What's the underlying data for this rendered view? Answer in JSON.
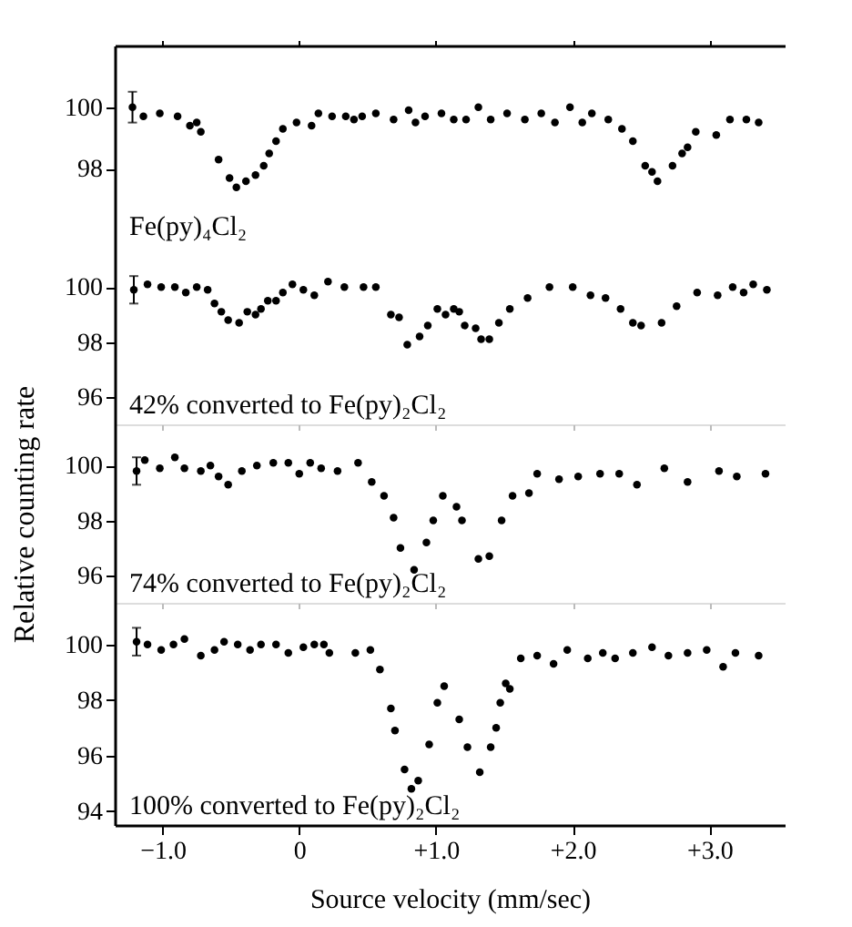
{
  "chart_data": [
    {
      "type": "scatter",
      "color": "#000000",
      "marker": "circle",
      "tick_labels": "y",
      "annotations": [
        "Fe(py)₄Cl₂"
      ],
      "xlim": [
        -1.35,
        3.55
      ],
      "xticks": [
        {
          "value": -1,
          "label": null
        },
        {
          "value": 0,
          "label": null
        },
        {
          "value": 1,
          "label": null
        },
        {
          "value": 2,
          "label": null
        },
        {
          "value": 3,
          "label": null
        }
      ],
      "ylim": [
        95.5,
        102
      ],
      "yticks": [
        100,
        98
      ],
      "x": [
        -1.22,
        -1.14,
        -1.02,
        -0.89,
        -0.8,
        -0.75,
        -0.72,
        -0.59,
        -0.51,
        -0.46,
        -0.39,
        -0.32,
        -0.26,
        -0.22,
        -0.17,
        -0.12,
        -0.02,
        0.09,
        0.14,
        0.24,
        0.34,
        0.4,
        0.46,
        0.56,
        0.69,
        0.8,
        0.85,
        0.92,
        1.04,
        1.13,
        1.22,
        1.31,
        1.4,
        1.52,
        1.65,
        1.77,
        1.87,
        1.98,
        2.07,
        2.14,
        2.26,
        2.36,
        2.44,
        2.53,
        2.58,
        2.62,
        2.73,
        2.8,
        2.84,
        2.9,
        3.05,
        3.15,
        3.27,
        3.36
      ],
      "values": [
        100.0,
        99.7,
        99.8,
        99.7,
        99.4,
        99.5,
        99.2,
        98.3,
        97.7,
        97.4,
        97.6,
        97.8,
        98.1,
        98.5,
        98.9,
        99.3,
        99.5,
        99.4,
        99.8,
        99.7,
        99.7,
        99.6,
        99.7,
        99.8,
        99.6,
        99.9,
        99.5,
        99.7,
        99.8,
        99.6,
        99.6,
        100.0,
        99.6,
        99.8,
        99.6,
        99.8,
        99.5,
        100.0,
        99.5,
        99.8,
        99.6,
        99.3,
        98.9,
        98.1,
        97.9,
        97.6,
        98.1,
        98.5,
        98.7,
        99.2,
        99.1,
        99.6,
        99.6,
        99.5
      ],
      "errors": [
        0.5,
        null,
        null,
        null,
        null,
        null,
        null,
        null,
        null,
        null,
        null,
        null,
        null,
        null,
        null,
        null,
        null,
        null,
        null,
        null,
        null,
        null,
        null,
        null,
        null,
        null,
        null,
        null,
        null,
        null,
        null,
        null,
        null,
        null,
        null,
        null,
        null,
        null,
        null,
        null,
        null,
        null,
        null,
        null,
        null,
        null,
        null,
        null,
        null,
        null,
        null,
        null,
        null,
        null
      ]
    },
    {
      "type": "scatter",
      "color": "#000000",
      "marker": "circle",
      "tick_labels": "y",
      "annotations": [
        "42% converted to Fe(py)₂Cl₂"
      ],
      "xlim": [
        -1.35,
        3.55
      ],
      "xticks": [
        {
          "value": -1,
          "label": null
        },
        {
          "value": 0,
          "label": null
        },
        {
          "value": 1,
          "label": null
        },
        {
          "value": 2,
          "label": null
        },
        {
          "value": 3,
          "label": null
        }
      ],
      "ylim": [
        95,
        101.5
      ],
      "yticks": [
        100,
        98,
        96
      ],
      "x": [
        -1.21,
        -1.11,
        -1.01,
        -0.91,
        -0.83,
        -0.75,
        -0.67,
        -0.62,
        -0.57,
        -0.52,
        -0.44,
        -0.38,
        -0.32,
        -0.28,
        -0.23,
        -0.17,
        -0.12,
        -0.05,
        0.03,
        0.11,
        0.21,
        0.33,
        0.47,
        0.56,
        0.67,
        0.73,
        0.79,
        0.88,
        0.94,
        1.01,
        1.07,
        1.13,
        1.17,
        1.21,
        1.29,
        1.33,
        1.39,
        1.46,
        1.54,
        1.67,
        1.83,
        2.0,
        2.13,
        2.24,
        2.35,
        2.44,
        2.5,
        2.65,
        2.76,
        2.91,
        3.06,
        3.17,
        3.25,
        3.32,
        3.42
      ],
      "values": [
        99.9,
        100.1,
        100.0,
        100.0,
        99.8,
        100.0,
        99.9,
        99.4,
        99.1,
        98.8,
        98.7,
        99.1,
        99.0,
        99.2,
        99.5,
        99.5,
        99.8,
        100.1,
        99.9,
        99.7,
        100.2,
        100.0,
        100.0,
        100.0,
        99.0,
        98.9,
        97.9,
        98.2,
        98.6,
        99.2,
        99.0,
        99.2,
        99.1,
        98.6,
        98.5,
        98.1,
        98.1,
        98.7,
        99.2,
        99.6,
        100.0,
        100.0,
        99.7,
        99.6,
        99.2,
        98.7,
        98.6,
        98.7,
        99.3,
        99.8,
        99.7,
        100.0,
        99.8,
        100.1,
        99.9
      ],
      "errors": [
        0.5,
        null,
        null,
        null,
        null,
        null,
        null,
        null,
        null,
        null,
        null,
        null,
        null,
        null,
        null,
        null,
        null,
        null,
        null,
        null,
        null,
        null,
        null,
        null,
        null,
        null,
        null,
        null,
        null,
        null,
        null,
        null,
        null,
        null,
        null,
        null,
        null,
        null,
        null,
        null,
        null,
        null,
        null,
        null,
        null,
        null,
        null,
        null,
        null,
        null,
        null,
        null,
        null,
        null,
        null
      ]
    },
    {
      "type": "scatter",
      "color": "#000000",
      "marker": "circle",
      "tick_labels": "y",
      "ylabel": "Relative counting rate",
      "annotations": [
        "74% converted to Fe(py)₂Cl₂"
      ],
      "xlim": [
        -1.35,
        3.55
      ],
      "xticks": [
        {
          "value": -1,
          "label": null
        },
        {
          "value": 0,
          "label": null
        },
        {
          "value": 1,
          "label": null
        },
        {
          "value": 2,
          "label": null
        },
        {
          "value": 3,
          "label": null
        }
      ],
      "ylim": [
        95,
        101.5
      ],
      "yticks": [
        100,
        98,
        96
      ],
      "x": [
        -1.19,
        -1.13,
        -1.02,
        -0.91,
        -0.84,
        -0.72,
        -0.65,
        -0.59,
        -0.52,
        -0.42,
        -0.31,
        -0.19,
        -0.08,
        0.0,
        0.08,
        0.16,
        0.28,
        0.43,
        0.53,
        0.62,
        0.69,
        0.74,
        0.84,
        0.93,
        0.98,
        1.05,
        1.15,
        1.19,
        1.31,
        1.39,
        1.48,
        1.56,
        1.68,
        1.74,
        1.9,
        2.04,
        2.2,
        2.34,
        2.47,
        2.67,
        2.84,
        3.07,
        3.2,
        3.41
      ],
      "values": [
        99.8,
        100.2,
        99.9,
        100.3,
        99.9,
        99.8,
        100.0,
        99.6,
        99.3,
        99.8,
        100.0,
        100.1,
        100.1,
        99.7,
        100.1,
        99.9,
        99.8,
        100.1,
        99.4,
        98.9,
        98.1,
        97.0,
        96.2,
        97.2,
        98.0,
        98.9,
        98.5,
        98.0,
        96.6,
        96.7,
        98.0,
        98.9,
        99.0,
        99.7,
        99.5,
        99.6,
        99.7,
        99.7,
        99.3,
        99.9,
        99.4,
        99.8,
        99.6,
        99.7
      ],
      "errors": [
        0.5,
        null,
        null,
        null,
        null,
        null,
        null,
        null,
        null,
        null,
        null,
        null,
        null,
        null,
        null,
        null,
        null,
        null,
        null,
        null,
        null,
        null,
        null,
        null,
        null,
        null,
        null,
        null,
        null,
        null,
        null,
        null,
        null,
        null,
        null,
        null,
        null,
        null,
        null,
        null,
        null,
        null,
        null,
        null
      ]
    },
    {
      "type": "scatter",
      "color": "#000000",
      "marker": "circle",
      "xlabel": "Source velocity (mm/sec)",
      "annotations": [
        "100% converted to Fe(py)₂Cl₂"
      ],
      "xlim": [
        -1.35,
        3.55
      ],
      "ylim": [
        93.5,
        101.5
      ],
      "yticks": [
        100,
        98,
        96,
        94
      ],
      "xticks": [
        {
          "value": -1,
          "label": "−1.0"
        },
        0,
        {
          "value": 1,
          "label": "+1.0"
        },
        {
          "value": 2,
          "label": "+2.0"
        },
        {
          "value": 3,
          "label": "+3.0"
        }
      ],
      "x": [
        -1.19,
        -1.11,
        -1.01,
        -0.92,
        -0.84,
        -0.72,
        -0.62,
        -0.55,
        -0.45,
        -0.36,
        -0.28,
        -0.17,
        -0.08,
        0.03,
        0.11,
        0.18,
        0.22,
        0.41,
        0.52,
        0.59,
        0.67,
        0.7,
        0.77,
        0.82,
        0.87,
        0.95,
        1.01,
        1.06,
        1.17,
        1.23,
        1.32,
        1.4,
        1.44,
        1.47,
        1.51,
        1.54,
        1.62,
        1.74,
        1.86,
        1.96,
        2.11,
        2.22,
        2.31,
        2.44,
        2.58,
        2.7,
        2.84,
        2.98,
        3.1,
        3.19,
        3.36
      ],
      "values": [
        100.1,
        100.0,
        99.8,
        100.0,
        100.2,
        99.6,
        99.8,
        100.1,
        100.0,
        99.8,
        100.0,
        100.0,
        99.7,
        99.9,
        100.0,
        100.0,
        99.7,
        99.7,
        99.8,
        99.1,
        97.7,
        96.9,
        95.5,
        94.8,
        95.1,
        96.4,
        97.9,
        98.5,
        97.3,
        96.3,
        95.4,
        96.3,
        97.0,
        97.9,
        98.6,
        98.4,
        99.5,
        99.6,
        99.3,
        99.8,
        99.5,
        99.7,
        99.5,
        99.7,
        99.9,
        99.6,
        99.7,
        99.8,
        99.2,
        99.7,
        99.6
      ],
      "errors": [
        0.5,
        null,
        null,
        null,
        null,
        null,
        null,
        null,
        null,
        null,
        null,
        null,
        null,
        null,
        null,
        null,
        null,
        null,
        null,
        null,
        null,
        null,
        null,
        null,
        null,
        null,
        null,
        null,
        null,
        null,
        null,
        null,
        null,
        null,
        null,
        null,
        null,
        null,
        null,
        null,
        null,
        null,
        null,
        null,
        null,
        null,
        null,
        null,
        null,
        null,
        null
      ]
    }
  ]
}
